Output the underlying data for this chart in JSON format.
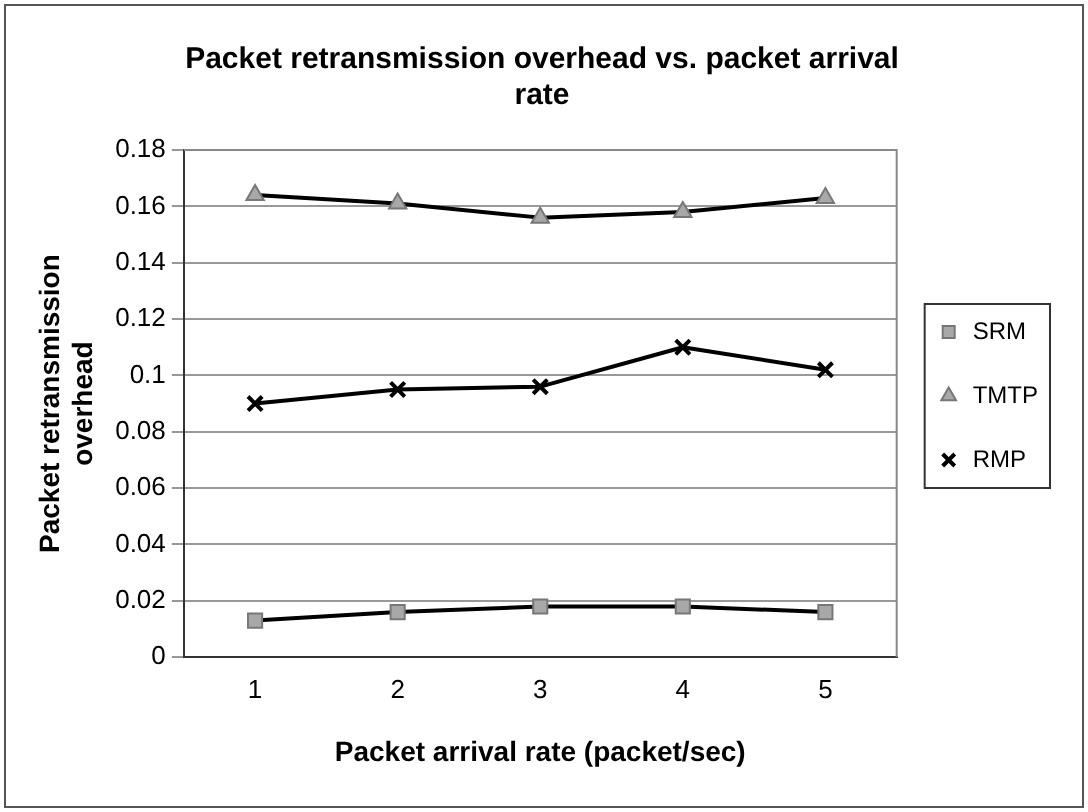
{
  "chart_data": {
    "type": "line",
    "title": "Packet retransmission overhead vs. packet arrival rate",
    "xlabel": "Packet arrival rate (packet/sec)",
    "ylabel": "Packet retransmission overhead",
    "categories": [
      "1",
      "2",
      "3",
      "4",
      "5"
    ],
    "series": [
      {
        "name": "SRM",
        "color": "#000000",
        "marker": "square",
        "values": [
          0.013,
          0.016,
          0.018,
          0.018,
          0.016
        ]
      },
      {
        "name": "TMTP",
        "color": "#000000",
        "marker": "triangle",
        "values": [
          0.164,
          0.161,
          0.156,
          0.158,
          0.163
        ]
      },
      {
        "name": "RMP",
        "color": "#000000",
        "marker": "cross",
        "values": [
          0.09,
          0.095,
          0.096,
          0.11,
          0.102
        ]
      }
    ],
    "ylim": [
      0,
      0.18
    ],
    "yticks": [
      0,
      0.02,
      0.04,
      0.06,
      0.08,
      0.1,
      0.12,
      0.14,
      0.16,
      0.18
    ],
    "grid": "y",
    "legend": "right",
    "line_style": "solid"
  }
}
